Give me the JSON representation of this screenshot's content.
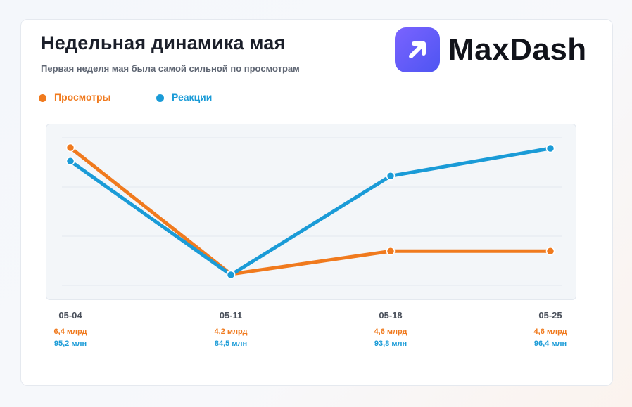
{
  "header": {
    "title": "Недельная динамика мая",
    "subtitle": "Первая неделя мая была самой сильной по просмотрам"
  },
  "brand": {
    "name": "MaxDash",
    "icon": "arrow-up-right-icon",
    "color": "#6a5cff"
  },
  "legend": [
    {
      "label": "Просмотры",
      "color": "#f07a1e"
    },
    {
      "label": "Реакции",
      "color": "#1a9bd7"
    }
  ],
  "chart_data": {
    "type": "line",
    "title": "Недельная динамика мая",
    "subtitle": "Первая неделя мая была самой сильной по просмотрам",
    "xlabel": "",
    "ylabel": "",
    "categories": [
      "05-04",
      "05-11",
      "05-18",
      "05-25"
    ],
    "series": [
      {
        "name": "Просмотры",
        "color": "#f07a1e",
        "values": [
          6.4,
          4.2,
          4.6,
          4.6
        ],
        "labels": [
          "6,4 млрд",
          "4,2 млрд",
          "4,6 млрд",
          "4,6 млрд"
        ]
      },
      {
        "name": "Реакции",
        "color": "#1a9bd7",
        "values": [
          95.2,
          84.5,
          93.8,
          96.4
        ],
        "labels": [
          "95,2 млн",
          "84,5 млн",
          "93,8 млн",
          "96,4 млн"
        ]
      }
    ],
    "grid": true,
    "legend_position": "top-left"
  }
}
